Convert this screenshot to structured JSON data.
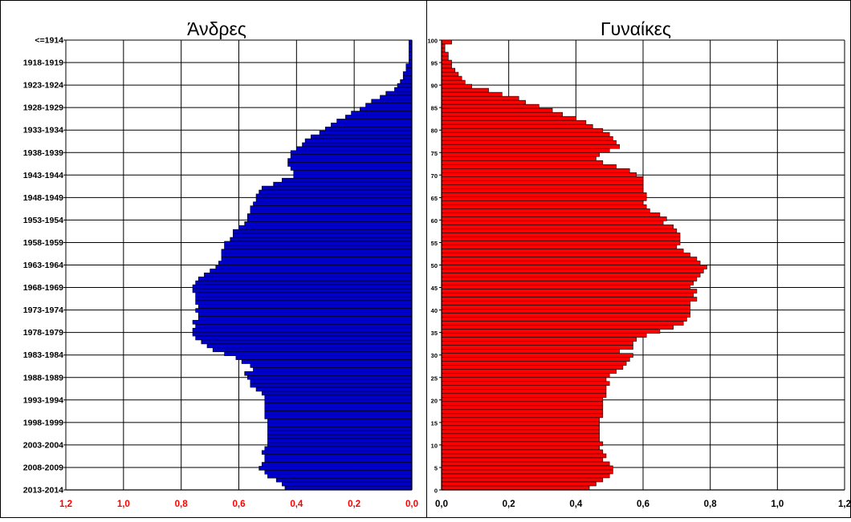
{
  "chart_data": [
    {
      "type": "bar",
      "orientation": "horizontal",
      "direction": "right-to-left",
      "title": "Άνδρες",
      "bar_color": "#0000cc",
      "tick_color": "#ff0000",
      "xlim": [
        0,
        1.2
      ],
      "xticks": [
        "1,2",
        "1,0",
        "0,8",
        "0,6",
        "0,4",
        "0,2",
        "0,0"
      ],
      "ylabels": [
        "<=1914",
        "1918-1919",
        "1923-1924",
        "1928-1929",
        "1933-1934",
        "1938-1939",
        "1943-1944",
        "1948-1949",
        "1953-1954",
        "1958-1959",
        "1963-1964",
        "1968-1969",
        "1973-1974",
        "1978-1979",
        "1983-1984",
        "1988-1989",
        "1993-1994",
        "1998-1999",
        "2003-2004",
        "2008-2009",
        "2013-2014"
      ],
      "grid": true,
      "values": [
        0.01,
        0.01,
        0.01,
        0.01,
        0.01,
        0.01,
        0.02,
        0.02,
        0.03,
        0.03,
        0.04,
        0.05,
        0.06,
        0.09,
        0.11,
        0.14,
        0.16,
        0.18,
        0.21,
        0.23,
        0.26,
        0.28,
        0.3,
        0.32,
        0.35,
        0.37,
        0.38,
        0.4,
        0.42,
        0.42,
        0.43,
        0.43,
        0.42,
        0.41,
        0.41,
        0.45,
        0.48,
        0.52,
        0.53,
        0.54,
        0.54,
        0.55,
        0.56,
        0.56,
        0.57,
        0.57,
        0.58,
        0.6,
        0.62,
        0.62,
        0.63,
        0.65,
        0.65,
        0.66,
        0.66,
        0.66,
        0.67,
        0.68,
        0.7,
        0.72,
        0.74,
        0.75,
        0.76,
        0.76,
        0.75,
        0.75,
        0.75,
        0.74,
        0.75,
        0.74,
        0.74,
        0.76,
        0.75,
        0.76,
        0.76,
        0.75,
        0.73,
        0.71,
        0.69,
        0.65,
        0.61,
        0.59,
        0.56,
        0.55,
        0.58,
        0.57,
        0.56,
        0.56,
        0.54,
        0.52,
        0.51,
        0.51,
        0.51,
        0.51,
        0.51,
        0.51,
        0.5,
        0.5,
        0.5,
        0.5,
        0.5,
        0.5,
        0.5,
        0.51,
        0.52,
        0.51,
        0.51,
        0.52,
        0.53,
        0.51,
        0.5,
        0.47,
        0.45,
        0.44
      ]
    },
    {
      "type": "bar",
      "orientation": "horizontal",
      "direction": "left-to-right",
      "title": "Γυναίκες",
      "bar_color": "#ff0000",
      "tick_color": "#000000",
      "xlim": [
        0,
        1.2
      ],
      "xticks": [
        "0,0",
        "0,2",
        "0,4",
        "0,6",
        "0,8",
        "1,0",
        "1,2"
      ],
      "ylabels": [
        "100",
        "95",
        "90",
        "85",
        "80",
        "75",
        "70",
        "65",
        "60",
        "55",
        "50",
        "45",
        "40",
        "35",
        "30",
        "25",
        "20",
        "15",
        "10",
        "5",
        "0"
      ],
      "grid": true,
      "values": [
        0.03,
        0.01,
        0.01,
        0.02,
        0.02,
        0.03,
        0.03,
        0.04,
        0.05,
        0.06,
        0.07,
        0.09,
        0.14,
        0.18,
        0.23,
        0.25,
        0.29,
        0.33,
        0.36,
        0.4,
        0.43,
        0.45,
        0.48,
        0.5,
        0.51,
        0.52,
        0.53,
        0.5,
        0.47,
        0.46,
        0.48,
        0.52,
        0.56,
        0.58,
        0.6,
        0.6,
        0.6,
        0.6,
        0.61,
        0.61,
        0.6,
        0.61,
        0.62,
        0.65,
        0.67,
        0.66,
        0.69,
        0.7,
        0.71,
        0.71,
        0.71,
        0.7,
        0.72,
        0.74,
        0.76,
        0.77,
        0.79,
        0.78,
        0.77,
        0.76,
        0.75,
        0.74,
        0.76,
        0.75,
        0.76,
        0.74,
        0.74,
        0.74,
        0.74,
        0.73,
        0.72,
        0.69,
        0.65,
        0.61,
        0.58,
        0.57,
        0.57,
        0.53,
        0.57,
        0.56,
        0.55,
        0.54,
        0.52,
        0.5,
        0.49,
        0.5,
        0.49,
        0.49,
        0.49,
        0.48,
        0.48,
        0.48,
        0.48,
        0.48,
        0.47,
        0.47,
        0.47,
        0.47,
        0.47,
        0.47,
        0.48,
        0.47,
        0.48,
        0.49,
        0.48,
        0.5,
        0.51,
        0.51,
        0.5,
        0.48,
        0.46,
        0.44
      ]
    }
  ]
}
